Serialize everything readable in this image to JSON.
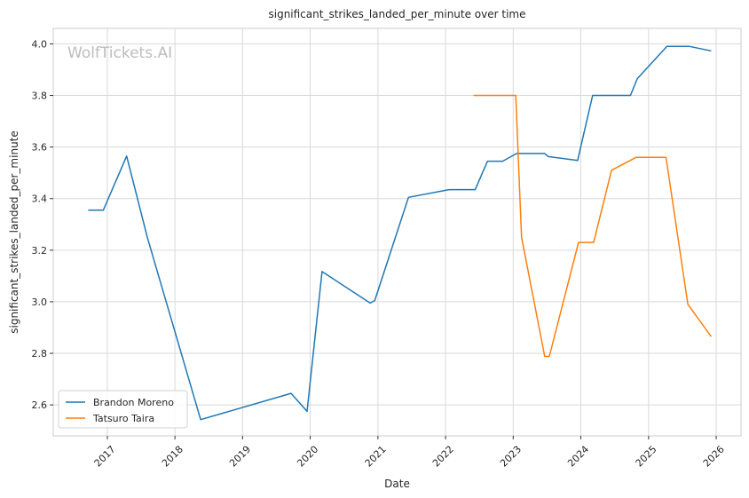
{
  "chart_data": {
    "type": "line",
    "title": "significant_strikes_landed_per_minute over time",
    "xlabel": "Date",
    "ylabel": "significant_strikes_landed_per_minute",
    "watermark": "WolfTickets.AI",
    "xlim": [
      "2016-03-15",
      "2026-05-15"
    ],
    "ylim": [
      2.48,
      4.06
    ],
    "x_ticks": [
      "2017-01-01",
      "2018-01-01",
      "2019-01-01",
      "2020-01-01",
      "2021-01-01",
      "2022-01-01",
      "2023-01-01",
      "2024-01-01",
      "2025-01-01",
      "2026-01-01"
    ],
    "x_tick_labels": [
      "2017",
      "2018",
      "2019",
      "2020",
      "2021",
      "2022",
      "2023",
      "2024",
      "2025",
      "2026"
    ],
    "y_ticks": [
      2.6,
      2.8,
      3.0,
      3.2,
      3.4,
      3.6,
      3.8,
      4.0
    ],
    "y_tick_labels": [
      "2.6",
      "2.8",
      "3.0",
      "3.2",
      "3.4",
      "3.6",
      "3.8",
      "4.0"
    ],
    "grid": true,
    "legend_position": "lower-left",
    "series": [
      {
        "name": "Brandon Moreno",
        "color": "#1f77b4",
        "points": [
          [
            "2016-09-20",
            3.355
          ],
          [
            "2016-12-10",
            3.355
          ],
          [
            "2017-04-15",
            3.565
          ],
          [
            "2017-08-05",
            3.25
          ],
          [
            "2018-05-20",
            2.543
          ],
          [
            "2019-09-20",
            2.645
          ],
          [
            "2019-12-15",
            2.575
          ],
          [
            "2020-03-05",
            3.117
          ],
          [
            "2020-11-20",
            2.995
          ],
          [
            "2020-12-15",
            3.005
          ],
          [
            "2021-06-15",
            3.405
          ],
          [
            "2022-01-20",
            3.435
          ],
          [
            "2022-06-10",
            3.435
          ],
          [
            "2022-08-15",
            3.545
          ],
          [
            "2022-11-05",
            3.545
          ],
          [
            "2023-01-20",
            3.575
          ],
          [
            "2023-06-20",
            3.575
          ],
          [
            "2023-07-10",
            3.563
          ],
          [
            "2023-12-15",
            3.548
          ],
          [
            "2024-03-05",
            3.8
          ],
          [
            "2024-09-25",
            3.8
          ],
          [
            "2024-11-01",
            3.865
          ],
          [
            "2025-04-10",
            3.99
          ],
          [
            "2025-08-10",
            3.99
          ],
          [
            "2025-12-05",
            3.973
          ]
        ]
      },
      {
        "name": "Tatsuro Taira",
        "color": "#ff7f0e",
        "points": [
          [
            "2022-06-01",
            3.8
          ],
          [
            "2022-10-05",
            3.8
          ],
          [
            "2023-01-15",
            3.8
          ],
          [
            "2023-02-15",
            3.25
          ],
          [
            "2023-06-20",
            2.788
          ],
          [
            "2023-07-15",
            2.788
          ],
          [
            "2023-12-20",
            3.23
          ],
          [
            "2024-03-10",
            3.23
          ],
          [
            "2024-06-15",
            3.51
          ],
          [
            "2024-10-25",
            3.56
          ],
          [
            "2025-01-20",
            3.56
          ],
          [
            "2025-04-05",
            3.56
          ],
          [
            "2025-08-01",
            2.99
          ],
          [
            "2025-12-05",
            2.865
          ]
        ]
      }
    ]
  }
}
